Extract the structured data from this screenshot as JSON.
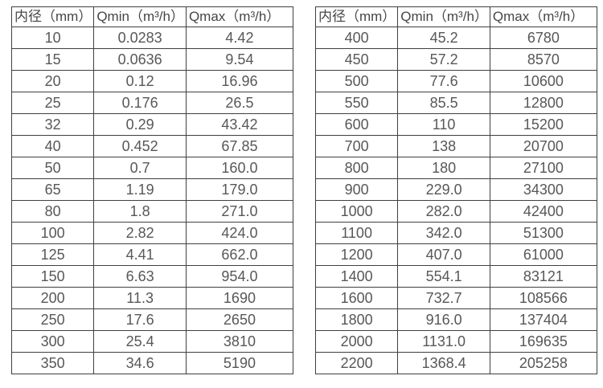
{
  "page": {
    "background": "#ffffff"
  },
  "colors": {
    "border": "#3f3f3f",
    "header_text": "#474545",
    "cell_text": "#595757"
  },
  "tables": [
    {
      "name": "small-diameter-flow-table",
      "headers": [
        "内径（mm）",
        "Qmin（m³/h）",
        "Qmax（m³/h）"
      ],
      "rows": [
        [
          "10",
          "0.0283",
          "4.42"
        ],
        [
          "15",
          "0.0636",
          "9.54"
        ],
        [
          "20",
          "0.12",
          "16.96"
        ],
        [
          "25",
          "0.176",
          "26.5"
        ],
        [
          "32",
          "0.29",
          "43.42"
        ],
        [
          "40",
          "0.452",
          "67.85"
        ],
        [
          "50",
          "0.7",
          "160.0"
        ],
        [
          "65",
          "1.19",
          "179.0"
        ],
        [
          "80",
          "1.8",
          "271.0"
        ],
        [
          "100",
          "2.82",
          "424.0"
        ],
        [
          "125",
          "4.41",
          "662.0"
        ],
        [
          "150",
          "6.63",
          "954.0"
        ],
        [
          "200",
          "11.3",
          "1690"
        ],
        [
          "250",
          "17.6",
          "2650"
        ],
        [
          "300",
          "25.4",
          "3810"
        ],
        [
          "350",
          "34.6",
          "5190"
        ]
      ]
    },
    {
      "name": "large-diameter-flow-table",
      "headers": [
        "内径（mm）",
        "Qmin（m³/h）",
        "Qmax（m³/h）"
      ],
      "rows": [
        [
          "400",
          "45.2",
          "6780"
        ],
        [
          "450",
          "57.2",
          "8570"
        ],
        [
          "500",
          "77.6",
          "10600"
        ],
        [
          "550",
          "85.5",
          "12800"
        ],
        [
          "600",
          "110",
          "15200"
        ],
        [
          "700",
          "138",
          "20700"
        ],
        [
          "800",
          "180",
          "27100"
        ],
        [
          "900",
          "229.0",
          "34300"
        ],
        [
          "1000",
          "282.0",
          "42400"
        ],
        [
          "1100",
          "342.0",
          "51300"
        ],
        [
          "1200",
          "407.0",
          "61000"
        ],
        [
          "1400",
          "554.1",
          "83121"
        ],
        [
          "1600",
          "732.7",
          "108566"
        ],
        [
          "1800",
          "916.0",
          "137404"
        ],
        [
          "2000",
          "1131.0",
          "169635"
        ],
        [
          "2200",
          "1368.4",
          "205258"
        ]
      ]
    }
  ]
}
